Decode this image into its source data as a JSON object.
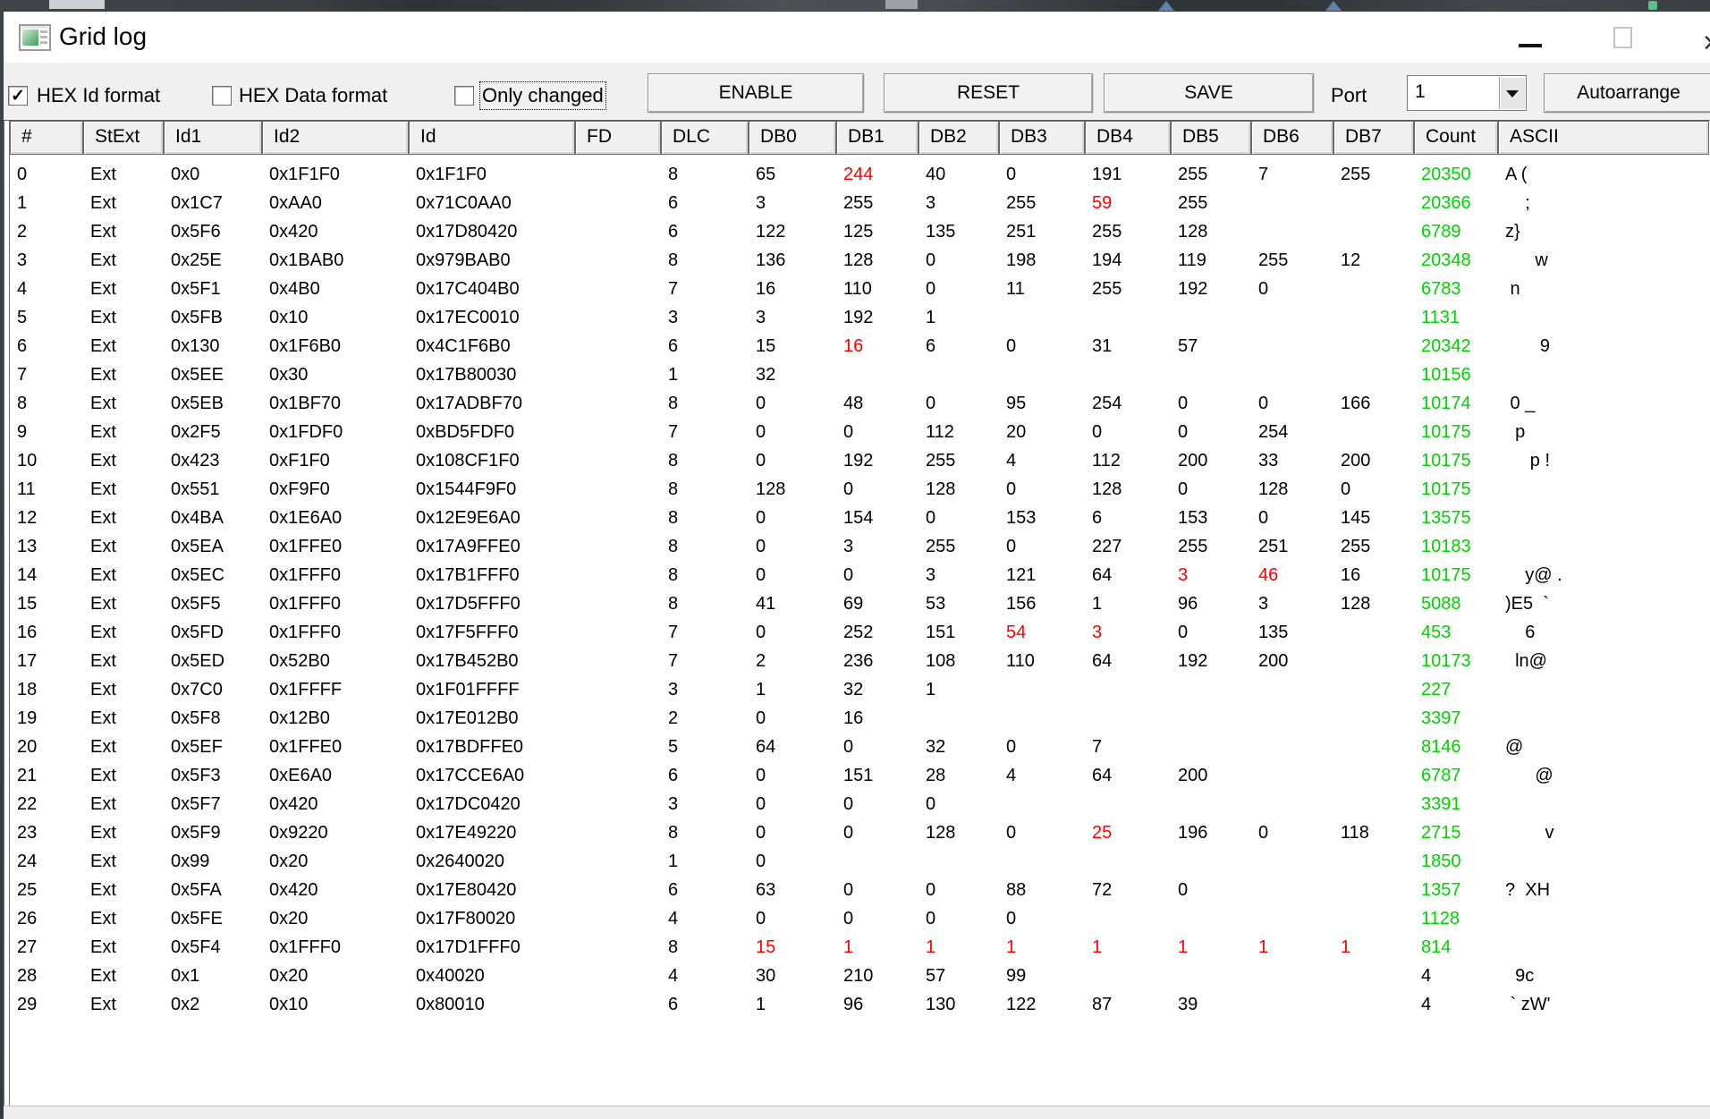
{
  "window": {
    "title": "Grid log"
  },
  "toolbar": {
    "checkboxes": [
      {
        "label": "HEX Id format",
        "checked": true,
        "focused": false
      },
      {
        "label": "HEX Data format",
        "checked": false,
        "focused": false
      },
      {
        "label": "Only changed",
        "checked": false,
        "focused": true
      }
    ],
    "buttons": [
      {
        "label": "ENABLE"
      },
      {
        "label": "RESET"
      },
      {
        "label": "SAVE"
      }
    ],
    "port": {
      "label": "Port",
      "value": "1"
    },
    "autoarrange": {
      "label": "Autoarrange"
    }
  },
  "grid": {
    "columns": [
      "#",
      "StExt",
      "Id1",
      "Id2",
      "Id",
      "FD",
      "DLC",
      "DB0",
      "DB1",
      "DB2",
      "DB3",
      "DB4",
      "DB5",
      "DB6",
      "DB7",
      "Count",
      "ASCII"
    ],
    "colors": {
      "count_green": "#00d300",
      "changed_red": "#ff0000"
    },
    "rows": [
      {
        "n": "0",
        "st": "Ext",
        "id1": "0x0",
        "id2": "0x1F1F0",
        "id": "0x1F1F0",
        "fd": "",
        "dlc": "8",
        "db": [
          "65",
          "244",
          "40",
          "0",
          "191",
          "255",
          "7",
          "255"
        ],
        "red": [
          1
        ],
        "count": "20350",
        "countColor": "green",
        "ascii": "A ("
      },
      {
        "n": "1",
        "st": "Ext",
        "id1": "0x1C7",
        "id2": "0xAA0",
        "id": "0x71C0AA0",
        "fd": "",
        "dlc": "6",
        "db": [
          "3",
          "255",
          "3",
          "255",
          "59",
          "255"
        ],
        "red": [
          4
        ],
        "count": "20366",
        "countColor": "green",
        "ascii": "    ;"
      },
      {
        "n": "2",
        "st": "Ext",
        "id1": "0x5F6",
        "id2": "0x420",
        "id": "0x17D80420",
        "fd": "",
        "dlc": "6",
        "db": [
          "122",
          "125",
          "135",
          "251",
          "255",
          "128"
        ],
        "red": [],
        "count": "6789",
        "countColor": "green",
        "ascii": "z}"
      },
      {
        "n": "3",
        "st": "Ext",
        "id1": "0x25E",
        "id2": "0x1BAB0",
        "id": "0x979BAB0",
        "fd": "",
        "dlc": "8",
        "db": [
          "136",
          "128",
          "0",
          "198",
          "194",
          "119",
          "255",
          "12"
        ],
        "red": [],
        "count": "20348",
        "countColor": "green",
        "ascii": "      w"
      },
      {
        "n": "4",
        "st": "Ext",
        "id1": "0x5F1",
        "id2": "0x4B0",
        "id": "0x17C404B0",
        "fd": "",
        "dlc": "7",
        "db": [
          "16",
          "110",
          "0",
          "11",
          "255",
          "192",
          "0"
        ],
        "red": [],
        "count": "6783",
        "countColor": "green",
        "ascii": " n"
      },
      {
        "n": "5",
        "st": "Ext",
        "id1": "0x5FB",
        "id2": "0x10",
        "id": "0x17EC0010",
        "fd": "",
        "dlc": "3",
        "db": [
          "3",
          "192",
          "1"
        ],
        "red": [],
        "count": "1131",
        "countColor": "green",
        "ascii": ""
      },
      {
        "n": "6",
        "st": "Ext",
        "id1": "0x130",
        "id2": "0x1F6B0",
        "id": "0x4C1F6B0",
        "fd": "",
        "dlc": "6",
        "db": [
          "15",
          "16",
          "6",
          "0",
          "31",
          "57"
        ],
        "red": [
          1
        ],
        "count": "20342",
        "countColor": "green",
        "ascii": "       9"
      },
      {
        "n": "7",
        "st": "Ext",
        "id1": "0x5EE",
        "id2": "0x30",
        "id": "0x17B80030",
        "fd": "",
        "dlc": "1",
        "db": [
          "32"
        ],
        "red": [],
        "count": "10156",
        "countColor": "green",
        "ascii": ""
      },
      {
        "n": "8",
        "st": "Ext",
        "id1": "0x5EB",
        "id2": "0x1BF70",
        "id": "0x17ADBF70",
        "fd": "",
        "dlc": "8",
        "db": [
          "0",
          "48",
          "0",
          "95",
          "254",
          "0",
          "0",
          "166"
        ],
        "red": [],
        "count": "10174",
        "countColor": "green",
        "ascii": " 0 _"
      },
      {
        "n": "9",
        "st": "Ext",
        "id1": "0x2F5",
        "id2": "0x1FDF0",
        "id": "0xBD5FDF0",
        "fd": "",
        "dlc": "7",
        "db": [
          "0",
          "0",
          "112",
          "20",
          "0",
          "0",
          "254"
        ],
        "red": [],
        "count": "10175",
        "countColor": "green",
        "ascii": "  p"
      },
      {
        "n": "10",
        "st": "Ext",
        "id1": "0x423",
        "id2": "0xF1F0",
        "id": "0x108CF1F0",
        "fd": "",
        "dlc": "8",
        "db": [
          "0",
          "192",
          "255",
          "4",
          "112",
          "200",
          "33",
          "200"
        ],
        "red": [],
        "count": "10175",
        "countColor": "green",
        "ascii": "     p !"
      },
      {
        "n": "11",
        "st": "Ext",
        "id1": "0x551",
        "id2": "0xF9F0",
        "id": "0x1544F9F0",
        "fd": "",
        "dlc": "8",
        "db": [
          "128",
          "0",
          "128",
          "0",
          "128",
          "0",
          "128",
          "0"
        ],
        "red": [],
        "count": "10175",
        "countColor": "green",
        "ascii": ""
      },
      {
        "n": "12",
        "st": "Ext",
        "id1": "0x4BA",
        "id2": "0x1E6A0",
        "id": "0x12E9E6A0",
        "fd": "",
        "dlc": "8",
        "db": [
          "0",
          "154",
          "0",
          "153",
          "6",
          "153",
          "0",
          "145"
        ],
        "red": [],
        "count": "13575",
        "countColor": "green",
        "ascii": ""
      },
      {
        "n": "13",
        "st": "Ext",
        "id1": "0x5EA",
        "id2": "0x1FFE0",
        "id": "0x17A9FFE0",
        "fd": "",
        "dlc": "8",
        "db": [
          "0",
          "3",
          "255",
          "0",
          "227",
          "255",
          "251",
          "255"
        ],
        "red": [],
        "count": "10183",
        "countColor": "green",
        "ascii": ""
      },
      {
        "n": "14",
        "st": "Ext",
        "id1": "0x5EC",
        "id2": "0x1FFF0",
        "id": "0x17B1FFF0",
        "fd": "",
        "dlc": "8",
        "db": [
          "0",
          "0",
          "3",
          "121",
          "64",
          "3",
          "46",
          "16"
        ],
        "red": [
          5,
          6
        ],
        "count": "10175",
        "countColor": "green",
        "ascii": "    y@ ."
      },
      {
        "n": "15",
        "st": "Ext",
        "id1": "0x5F5",
        "id2": "0x1FFF0",
        "id": "0x17D5FFF0",
        "fd": "",
        "dlc": "8",
        "db": [
          "41",
          "69",
          "53",
          "156",
          "1",
          "96",
          "3",
          "128"
        ],
        "red": [],
        "count": "5088",
        "countColor": "green",
        "ascii": ")E5  `"
      },
      {
        "n": "16",
        "st": "Ext",
        "id1": "0x5FD",
        "id2": "0x1FFF0",
        "id": "0x17F5FFF0",
        "fd": "",
        "dlc": "7",
        "db": [
          "0",
          "252",
          "151",
          "54",
          "3",
          "0",
          "135"
        ],
        "red": [
          3,
          4
        ],
        "count": "453",
        "countColor": "green",
        "ascii": "    6"
      },
      {
        "n": "17",
        "st": "Ext",
        "id1": "0x5ED",
        "id2": "0x52B0",
        "id": "0x17B452B0",
        "fd": "",
        "dlc": "7",
        "db": [
          "2",
          "236",
          "108",
          "110",
          "64",
          "192",
          "200"
        ],
        "red": [],
        "count": "10173",
        "countColor": "green",
        "ascii": "  ln@"
      },
      {
        "n": "18",
        "st": "Ext",
        "id1": "0x7C0",
        "id2": "0x1FFFF",
        "id": "0x1F01FFFF",
        "fd": "",
        "dlc": "3",
        "db": [
          "1",
          "32",
          "1"
        ],
        "red": [],
        "count": "227",
        "countColor": "green",
        "ascii": ""
      },
      {
        "n": "19",
        "st": "Ext",
        "id1": "0x5F8",
        "id2": "0x12B0",
        "id": "0x17E012B0",
        "fd": "",
        "dlc": "2",
        "db": [
          "0",
          "16"
        ],
        "red": [],
        "count": "3397",
        "countColor": "green",
        "ascii": ""
      },
      {
        "n": "20",
        "st": "Ext",
        "id1": "0x5EF",
        "id2": "0x1FFE0",
        "id": "0x17BDFFE0",
        "fd": "",
        "dlc": "5",
        "db": [
          "64",
          "0",
          "32",
          "0",
          "7"
        ],
        "red": [],
        "count": "8146",
        "countColor": "green",
        "ascii": "@"
      },
      {
        "n": "21",
        "st": "Ext",
        "id1": "0x5F3",
        "id2": "0xE6A0",
        "id": "0x17CCE6A0",
        "fd": "",
        "dlc": "6",
        "db": [
          "0",
          "151",
          "28",
          "4",
          "64",
          "200"
        ],
        "red": [],
        "count": "6787",
        "countColor": "green",
        "ascii": "      @"
      },
      {
        "n": "22",
        "st": "Ext",
        "id1": "0x5F7",
        "id2": "0x420",
        "id": "0x17DC0420",
        "fd": "",
        "dlc": "3",
        "db": [
          "0",
          "0",
          "0"
        ],
        "red": [],
        "count": "3391",
        "countColor": "green",
        "ascii": ""
      },
      {
        "n": "23",
        "st": "Ext",
        "id1": "0x5F9",
        "id2": "0x9220",
        "id": "0x17E49220",
        "fd": "",
        "dlc": "8",
        "db": [
          "0",
          "0",
          "128",
          "0",
          "25",
          "196",
          "0",
          "118"
        ],
        "red": [
          4
        ],
        "count": "2715",
        "countColor": "green",
        "ascii": "        v"
      },
      {
        "n": "24",
        "st": "Ext",
        "id1": "0x99",
        "id2": "0x20",
        "id": "0x2640020",
        "fd": "",
        "dlc": "1",
        "db": [
          "0"
        ],
        "red": [],
        "count": "1850",
        "countColor": "green",
        "ascii": ""
      },
      {
        "n": "25",
        "st": "Ext",
        "id1": "0x5FA",
        "id2": "0x420",
        "id": "0x17E80420",
        "fd": "",
        "dlc": "6",
        "db": [
          "63",
          "0",
          "0",
          "88",
          "72",
          "0"
        ],
        "red": [],
        "count": "1357",
        "countColor": "green",
        "ascii": "?  XH"
      },
      {
        "n": "26",
        "st": "Ext",
        "id1": "0x5FE",
        "id2": "0x20",
        "id": "0x17F80020",
        "fd": "",
        "dlc": "4",
        "db": [
          "0",
          "0",
          "0",
          "0"
        ],
        "red": [],
        "count": "1128",
        "countColor": "green",
        "ascii": ""
      },
      {
        "n": "27",
        "st": "Ext",
        "id1": "0x5F4",
        "id2": "0x1FFF0",
        "id": "0x17D1FFF0",
        "fd": "",
        "dlc": "8",
        "db": [
          "15",
          "1",
          "1",
          "1",
          "1",
          "1",
          "1",
          "1"
        ],
        "red": [
          0,
          1,
          2,
          3,
          4,
          5,
          6,
          7
        ],
        "count": "814",
        "countColor": "green",
        "ascii": ""
      },
      {
        "n": "28",
        "st": "Ext",
        "id1": "0x1",
        "id2": "0x20",
        "id": "0x40020",
        "fd": "",
        "dlc": "4",
        "db": [
          "30",
          "210",
          "57",
          "99"
        ],
        "red": [],
        "count": "4",
        "countColor": "black",
        "ascii": "  9c"
      },
      {
        "n": "29",
        "st": "Ext",
        "id1": "0x2",
        "id2": "0x10",
        "id": "0x80010",
        "fd": "",
        "dlc": "6",
        "db": [
          "1",
          "96",
          "130",
          "122",
          "87",
          "39"
        ],
        "red": [],
        "count": "4",
        "countColor": "black",
        "ascii": " ` zW'"
      }
    ]
  }
}
